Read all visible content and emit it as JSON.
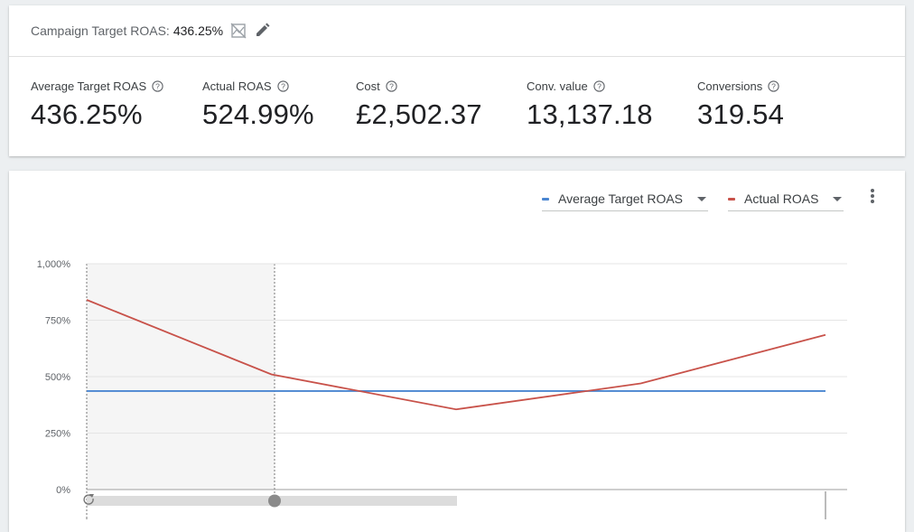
{
  "header": {
    "target_label": "Campaign Target ROAS:",
    "target_value": "436.25%",
    "icons": [
      "chart-off-icon",
      "pencil-icon"
    ]
  },
  "metrics": [
    {
      "label": "Average Target ROAS",
      "value": "436.25%"
    },
    {
      "label": "Actual ROAS",
      "value": "524.99%"
    },
    {
      "label": "Cost",
      "value": "£2,502.37"
    },
    {
      "label": "Conv. value",
      "value": "13,137.18"
    },
    {
      "label": "Conversions",
      "value": "319.54"
    }
  ],
  "legend": {
    "series1": {
      "label": "Average Target ROAS",
      "color": "#4a86d1"
    },
    "series2": {
      "label": "Actual ROAS",
      "color": "#c8524a"
    }
  },
  "chart_data": {
    "type": "line",
    "x": [
      0,
      1,
      2,
      3,
      4
    ],
    "series": [
      {
        "name": "Average Target ROAS",
        "color": "#4a86d1",
        "values": [
          436.25,
          436.25,
          436.25,
          436.25,
          436.25
        ]
      },
      {
        "name": "Actual ROAS",
        "color": "#c8524a",
        "values": [
          840,
          510,
          355,
          470,
          685
        ]
      }
    ],
    "yticks": [
      "1,000%",
      "750%",
      "500%",
      "250%",
      "0%"
    ],
    "ylim": [
      0,
      1000
    ],
    "grid": true,
    "legend_placement": "top-right",
    "highlight_range": [
      0,
      1
    ]
  }
}
